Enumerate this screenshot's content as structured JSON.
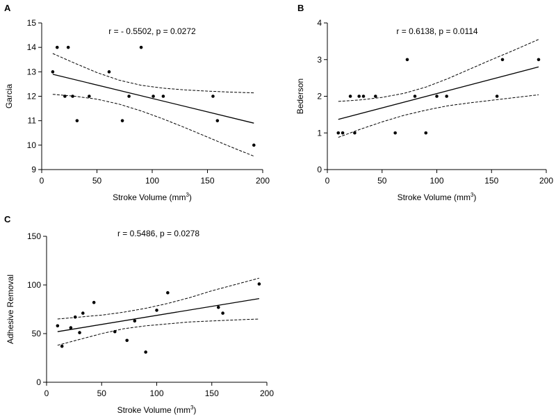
{
  "chart_data": [
    {
      "type": "scatter",
      "panel": "A",
      "stat_text": "r = - 0.5502, p = 0.0272",
      "xlabel": "Stroke Volume (mm",
      "xlabel_sup": "3",
      "xlabel_end": ")",
      "ylabel": "Garcia",
      "xlim": [
        0,
        200
      ],
      "ylim": [
        9,
        15
      ],
      "xticks": [
        0,
        50,
        100,
        150,
        200
      ],
      "yticks": [
        9,
        10,
        11,
        12,
        13,
        14,
        15
      ],
      "points": [
        {
          "x": 10,
          "y": 13
        },
        {
          "x": 14,
          "y": 14
        },
        {
          "x": 21,
          "y": 12
        },
        {
          "x": 24,
          "y": 14
        },
        {
          "x": 28,
          "y": 12
        },
        {
          "x": 32,
          "y": 11
        },
        {
          "x": 43,
          "y": 12
        },
        {
          "x": 61,
          "y": 13
        },
        {
          "x": 73,
          "y": 11
        },
        {
          "x": 79,
          "y": 12
        },
        {
          "x": 90,
          "y": 14
        },
        {
          "x": 101,
          "y": 12
        },
        {
          "x": 110,
          "y": 12
        },
        {
          "x": 155,
          "y": 12
        },
        {
          "x": 159,
          "y": 11
        },
        {
          "x": 192,
          "y": 10
        }
      ],
      "fit": {
        "x": [
          10,
          192
        ],
        "y": [
          12.9,
          10.9
        ]
      },
      "ci_upper": {
        "x": [
          10,
          30,
          50,
          70,
          90,
          110,
          130,
          150,
          170,
          192
        ],
        "y": [
          13.75,
          13.35,
          12.97,
          12.66,
          12.45,
          12.33,
          12.26,
          12.21,
          12.17,
          12.14
        ]
      },
      "ci_lower": {
        "x": [
          10,
          30,
          50,
          70,
          90,
          110,
          130,
          150,
          170,
          192
        ],
        "y": [
          12.08,
          12.0,
          11.88,
          11.68,
          11.4,
          11.07,
          10.71,
          10.33,
          9.95,
          9.55
        ]
      }
    },
    {
      "type": "scatter",
      "panel": "B",
      "stat_text": "r = 0.6138, p = 0.0114",
      "xlabel": "Stroke Volume (mm",
      "xlabel_sup": "3",
      "xlabel_end": ")",
      "ylabel": "Bederson",
      "xlim": [
        0,
        200
      ],
      "ylim": [
        0,
        4
      ],
      "xticks": [
        0,
        50,
        100,
        150,
        200
      ],
      "yticks": [
        0,
        1,
        2,
        3,
        4
      ],
      "points": [
        {
          "x": 10,
          "y": 1
        },
        {
          "x": 14,
          "y": 1
        },
        {
          "x": 21,
          "y": 2
        },
        {
          "x": 25,
          "y": 1
        },
        {
          "x": 29,
          "y": 2
        },
        {
          "x": 33,
          "y": 2
        },
        {
          "x": 44,
          "y": 2
        },
        {
          "x": 62,
          "y": 1
        },
        {
          "x": 73,
          "y": 3
        },
        {
          "x": 80,
          "y": 2
        },
        {
          "x": 90,
          "y": 1
        },
        {
          "x": 100,
          "y": 2
        },
        {
          "x": 109,
          "y": 2
        },
        {
          "x": 155,
          "y": 2
        },
        {
          "x": 160,
          "y": 3
        },
        {
          "x": 193,
          "y": 3
        }
      ],
      "fit": {
        "x": [
          10,
          193
        ],
        "y": [
          1.37,
          2.8
        ]
      },
      "ci_upper": {
        "x": [
          10,
          30,
          50,
          70,
          90,
          110,
          130,
          150,
          170,
          193
        ],
        "y": [
          1.86,
          1.9,
          1.97,
          2.08,
          2.25,
          2.48,
          2.74,
          3.0,
          3.25,
          3.55
        ]
      },
      "ci_lower": {
        "x": [
          10,
          30,
          50,
          70,
          90,
          110,
          130,
          150,
          170,
          193
        ],
        "y": [
          0.88,
          1.1,
          1.3,
          1.48,
          1.62,
          1.74,
          1.82,
          1.89,
          1.96,
          2.04
        ]
      }
    },
    {
      "type": "scatter",
      "panel": "C",
      "stat_text": "r = 0.5486, p = 0.0278",
      "xlabel": "Stroke Volume (mm",
      "xlabel_sup": "3",
      "xlabel_end": ")",
      "ylabel": "Adhesive Removal",
      "xlim": [
        0,
        200
      ],
      "ylim": [
        0,
        150
      ],
      "xticks": [
        0,
        50,
        100,
        150,
        200
      ],
      "yticks": [
        0,
        50,
        100,
        150
      ],
      "points": [
        {
          "x": 10,
          "y": 58
        },
        {
          "x": 14,
          "y": 37
        },
        {
          "x": 22,
          "y": 56
        },
        {
          "x": 26,
          "y": 67
        },
        {
          "x": 30,
          "y": 51
        },
        {
          "x": 33,
          "y": 71
        },
        {
          "x": 43,
          "y": 82
        },
        {
          "x": 62,
          "y": 52
        },
        {
          "x": 73,
          "y": 43
        },
        {
          "x": 80,
          "y": 63
        },
        {
          "x": 90,
          "y": 31
        },
        {
          "x": 100,
          "y": 74
        },
        {
          "x": 110,
          "y": 92
        },
        {
          "x": 156,
          "y": 77
        },
        {
          "x": 160,
          "y": 71
        },
        {
          "x": 193,
          "y": 101
        }
      ],
      "fit": {
        "x": [
          10,
          193
        ],
        "y": [
          52,
          86
        ]
      },
      "ci_upper": {
        "x": [
          10,
          30,
          50,
          70,
          90,
          110,
          130,
          150,
          170,
          193
        ],
        "y": [
          65,
          67,
          69,
          72,
          76,
          81,
          87,
          94,
          100,
          107
        ]
      },
      "ci_lower": {
        "x": [
          10,
          30,
          50,
          70,
          90,
          110,
          130,
          150,
          170,
          193
        ],
        "y": [
          38,
          44,
          50,
          55,
          58,
          60,
          62,
          63,
          64,
          65
        ]
      }
    }
  ]
}
